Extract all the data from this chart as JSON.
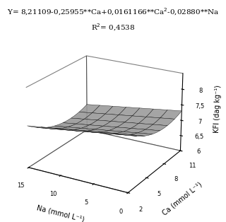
{
  "title_line1": "Y= 8,21109-0,25955**Ca+0,0161166**Ca$^2$-0,02880**Na",
  "title_line2": "R$^2$= 0,4538",
  "xlabel": "Na (mmol L⁻¹)",
  "ylabel": "Ca (mmol L⁻¹)",
  "zlabel": "KFI (dag kg⁻¹)",
  "na_ticks": [
    15,
    10,
    5,
    0
  ],
  "ca_ticks": [
    2,
    5,
    8,
    11
  ],
  "z_ticks": [
    6.0,
    6.5,
    7.0,
    7.5,
    8.0
  ],
  "z_tick_labels": [
    "6",
    "6,5",
    "7",
    "7,5",
    "8"
  ],
  "zlim": [
    6.0,
    8.5
  ],
  "na_range": [
    0,
    15
  ],
  "ca_range": [
    2,
    11
  ],
  "surface_color": "#c8c8c8",
  "surface_alpha": 0.9,
  "coeff_intercept": 8.21109,
  "coeff_ca": -0.25955,
  "coeff_ca2": 0.0161166,
  "coeff_na": -0.0288,
  "elev": 22,
  "azim": -60
}
